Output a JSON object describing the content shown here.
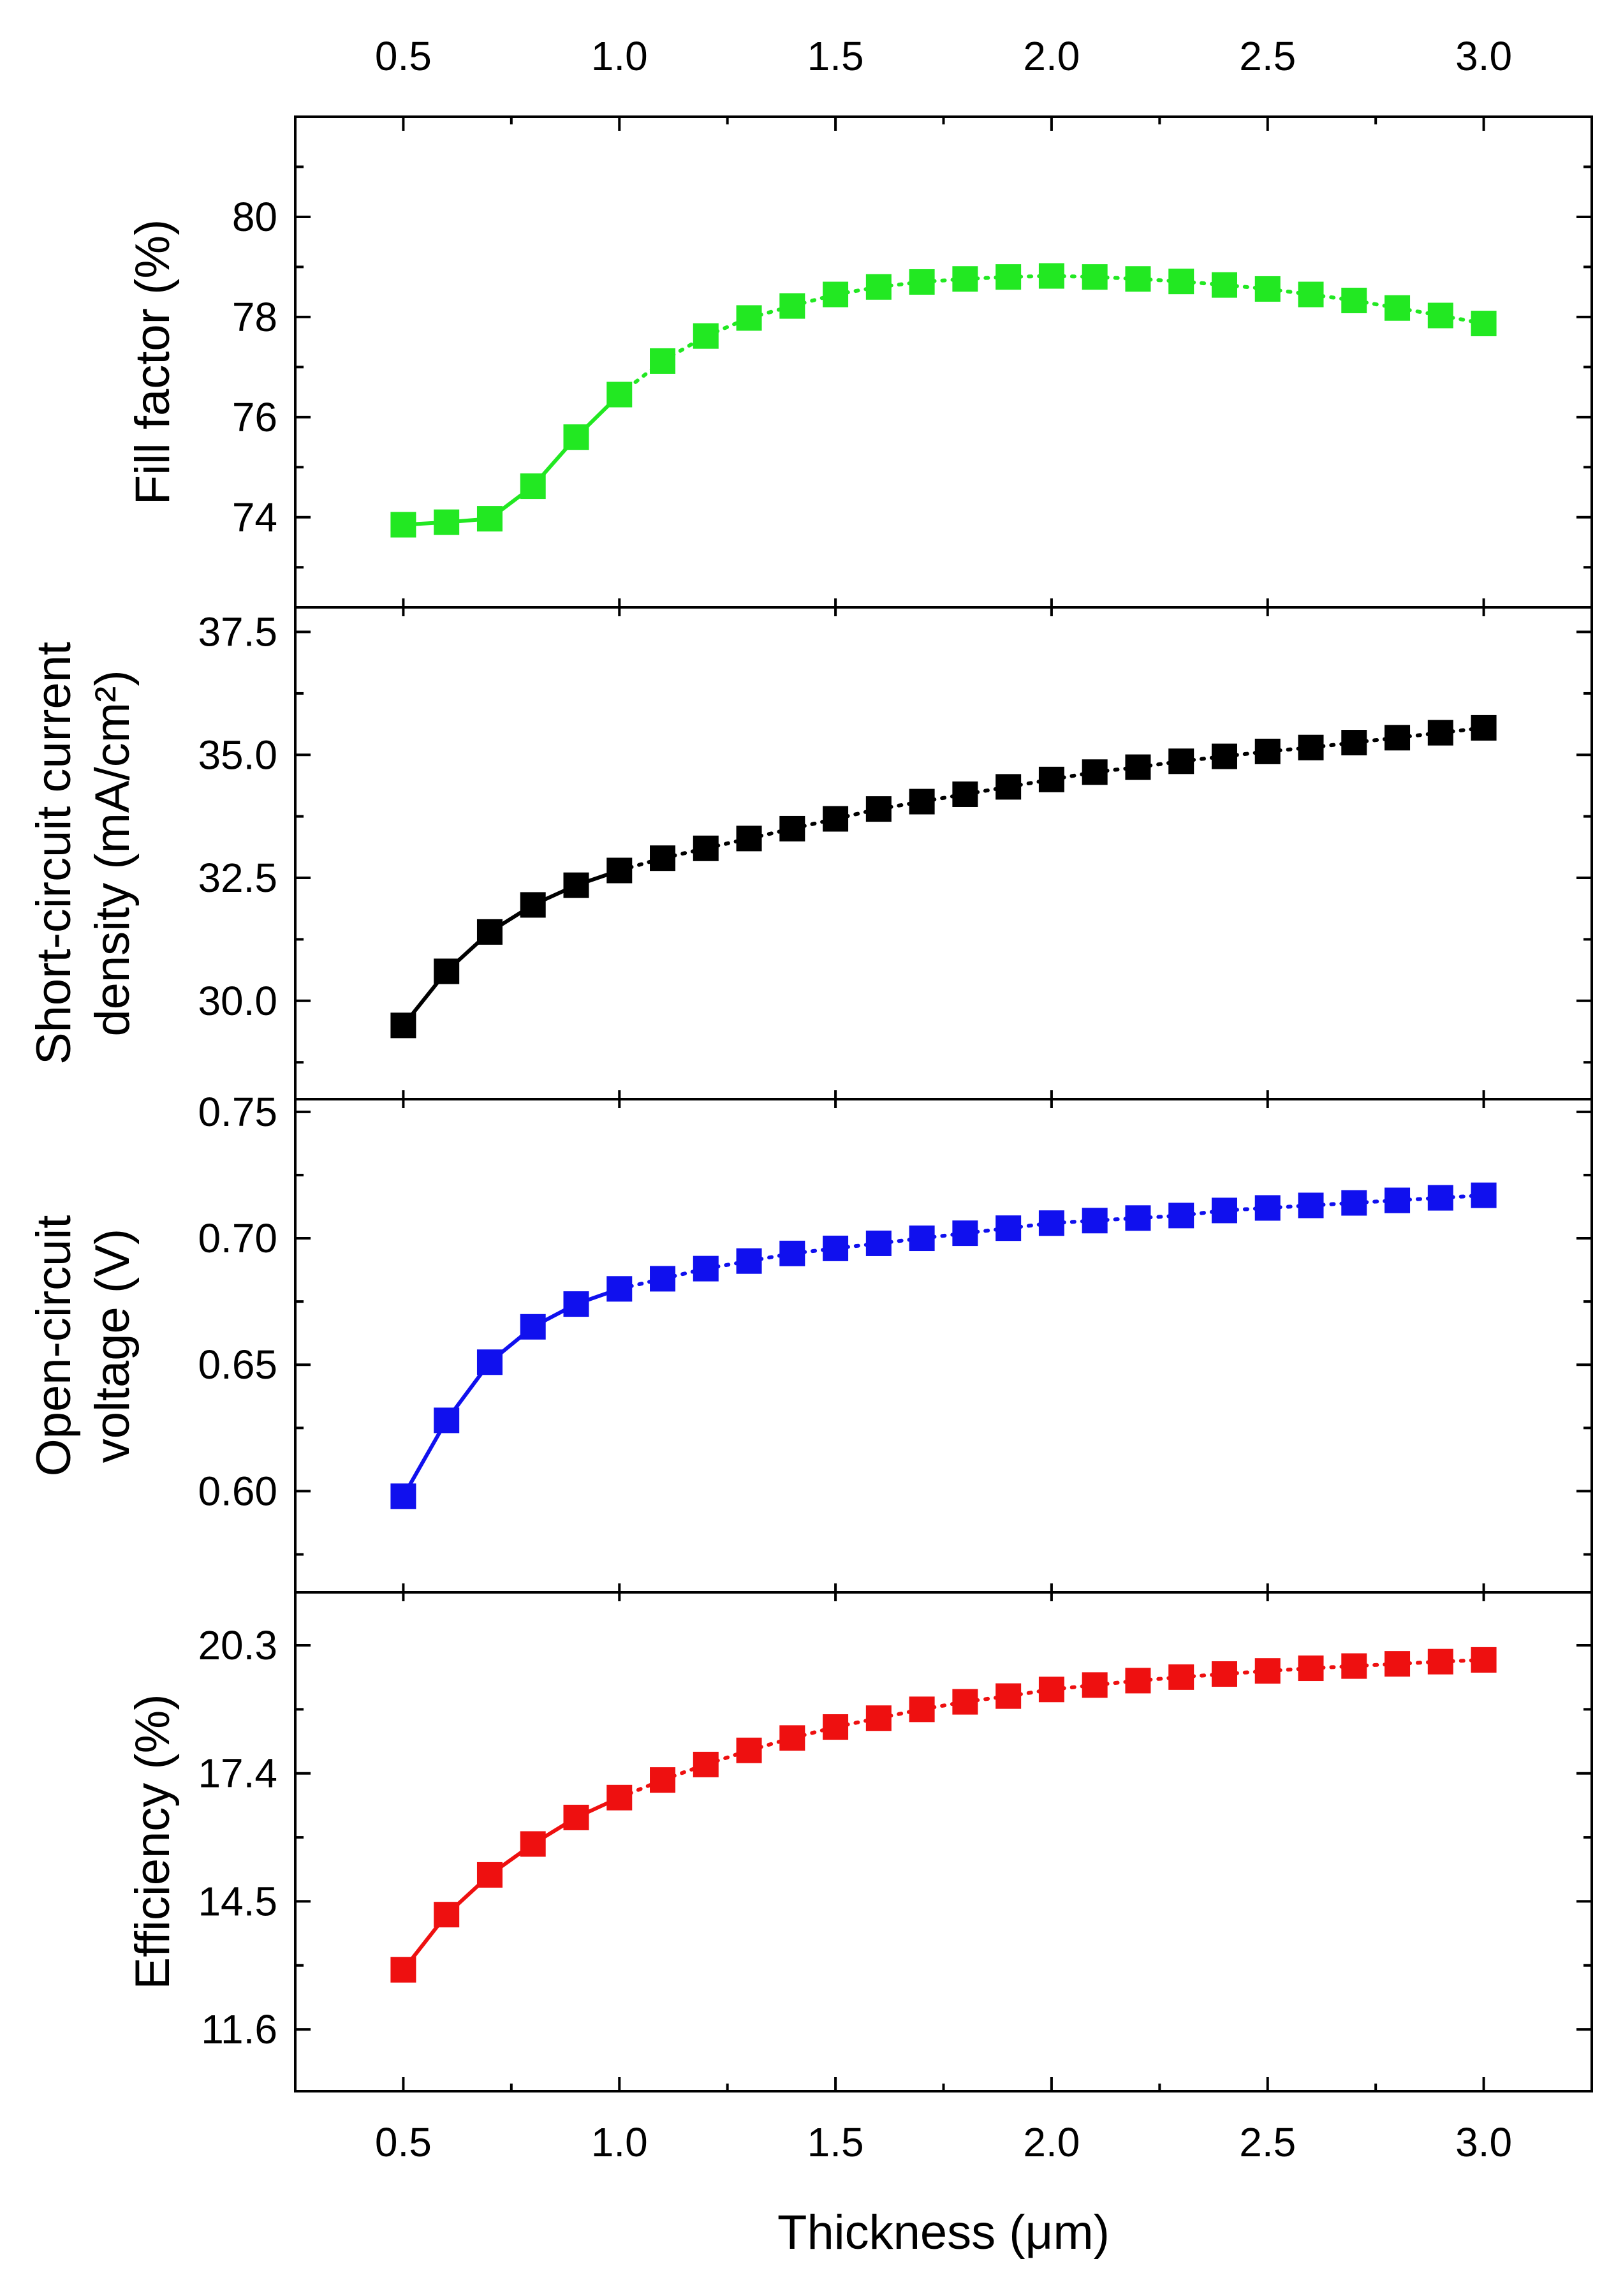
{
  "chart_data": {
    "type": "scatter",
    "shared_x": {
      "xlabel": "Thickness (μm)",
      "xlim": [
        0.25,
        3.25
      ],
      "ticks": [
        0.5,
        1.0,
        1.5,
        2.0,
        2.5,
        3.0
      ],
      "tick_labels": [
        "0.5",
        "1.0",
        "1.5",
        "2.0",
        "2.5",
        "3.0"
      ],
      "minor_ticks": [
        0.25,
        0.75,
        1.25,
        1.75,
        2.25,
        2.75,
        3.25
      ]
    },
    "x": [
      0.5,
      0.6,
      0.7,
      0.8,
      0.9,
      1.0,
      1.1,
      1.2,
      1.3,
      1.4,
      1.5,
      1.6,
      1.7,
      1.8,
      1.9,
      2.0,
      2.1,
      2.2,
      2.3,
      2.4,
      2.5,
      2.6,
      2.7,
      2.8,
      2.9,
      3.0
    ],
    "panels": [
      {
        "ylabel_lines": [
          "Fill factor (%)"
        ],
        "ylim": [
          72.2,
          82.0
        ],
        "yticks": [
          74,
          76,
          78,
          80
        ],
        "ytick_labels": [
          "74",
          "76",
          "78",
          "80"
        ],
        "y_minor": [
          73,
          75,
          77,
          79,
          81
        ],
        "color": "#22e822",
        "values": [
          73.85,
          73.9,
          73.97,
          74.62,
          75.6,
          76.45,
          77.12,
          77.62,
          77.98,
          78.22,
          78.45,
          78.6,
          78.7,
          78.76,
          78.8,
          78.82,
          78.8,
          78.76,
          78.71,
          78.64,
          78.56,
          78.45,
          78.33,
          78.18,
          78.03,
          77.87
        ]
      },
      {
        "ylabel_lines": [
          "Short-circuit current",
          "density (mA/cm²)"
        ],
        "ylim": [
          28.0,
          38.0
        ],
        "yticks": [
          30.0,
          32.5,
          35.0,
          37.5
        ],
        "ytick_labels": [
          "30.0",
          "32.5",
          "35.0",
          "37.5"
        ],
        "y_minor": [
          28.75,
          31.25,
          33.75,
          36.25
        ],
        "color": "#000000",
        "values": [
          29.5,
          30.6,
          31.4,
          31.95,
          32.35,
          32.65,
          32.9,
          33.1,
          33.3,
          33.5,
          33.7,
          33.9,
          34.05,
          34.2,
          34.35,
          34.5,
          34.65,
          34.75,
          34.87,
          34.97,
          35.07,
          35.15,
          35.25,
          35.35,
          35.45,
          35.55
        ]
      },
      {
        "ylabel_lines": [
          "Open-circuit",
          "voltage (V)"
        ],
        "ylim": [
          0.56,
          0.755
        ],
        "yticks": [
          0.6,
          0.65,
          0.7,
          0.75
        ],
        "ytick_labels": [
          "0.60",
          "0.65",
          "0.70",
          "0.75"
        ],
        "y_minor": [
          0.575,
          0.625,
          0.675,
          0.725
        ],
        "color": "#1010ee",
        "values": [
          0.598,
          0.628,
          0.651,
          0.665,
          0.674,
          0.68,
          0.684,
          0.688,
          0.691,
          0.694,
          0.696,
          0.698,
          0.7,
          0.702,
          0.704,
          0.706,
          0.707,
          0.708,
          0.709,
          0.711,
          0.712,
          0.713,
          0.714,
          0.715,
          0.716,
          0.717
        ]
      },
      {
        "ylabel_lines": [
          "Efficiency (%)"
        ],
        "ylim": [
          10.2,
          21.5
        ],
        "yticks": [
          11.6,
          14.5,
          17.4,
          20.3
        ],
        "ytick_labels": [
          "11.6",
          "14.5",
          "17.4",
          "20.3"
        ],
        "y_minor": [
          13.05,
          15.95,
          18.85
        ],
        "color": "#ee1010",
        "values": [
          12.95,
          14.2,
          15.1,
          15.8,
          16.4,
          16.85,
          17.25,
          17.6,
          17.92,
          18.2,
          18.45,
          18.65,
          18.85,
          19.02,
          19.15,
          19.3,
          19.4,
          19.5,
          19.58,
          19.65,
          19.72,
          19.78,
          19.83,
          19.88,
          19.93,
          19.97
        ]
      }
    ]
  }
}
